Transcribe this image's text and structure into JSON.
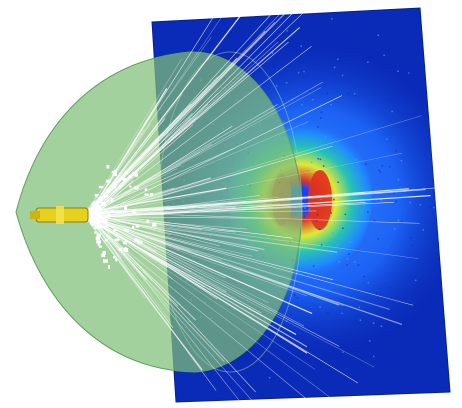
{
  "scene": {
    "subject": "particle-beam-visualization",
    "colors": {
      "background": "#ffffff",
      "detector_base": "#0a2ab8",
      "detector_edge": "#06208f",
      "heat_low": "#1f6cff",
      "heat_mid": "#27c7b0",
      "heat_high": "#e8ef2a",
      "heat_peak": "#e0311e",
      "center_hole": "#1740ff",
      "cone_fill": "#7fbf78",
      "cone_edge": "#5f9f5c",
      "track": "#ffffff",
      "source": "#e6d21e",
      "source_edge": "#8a7a0a"
    }
  }
}
